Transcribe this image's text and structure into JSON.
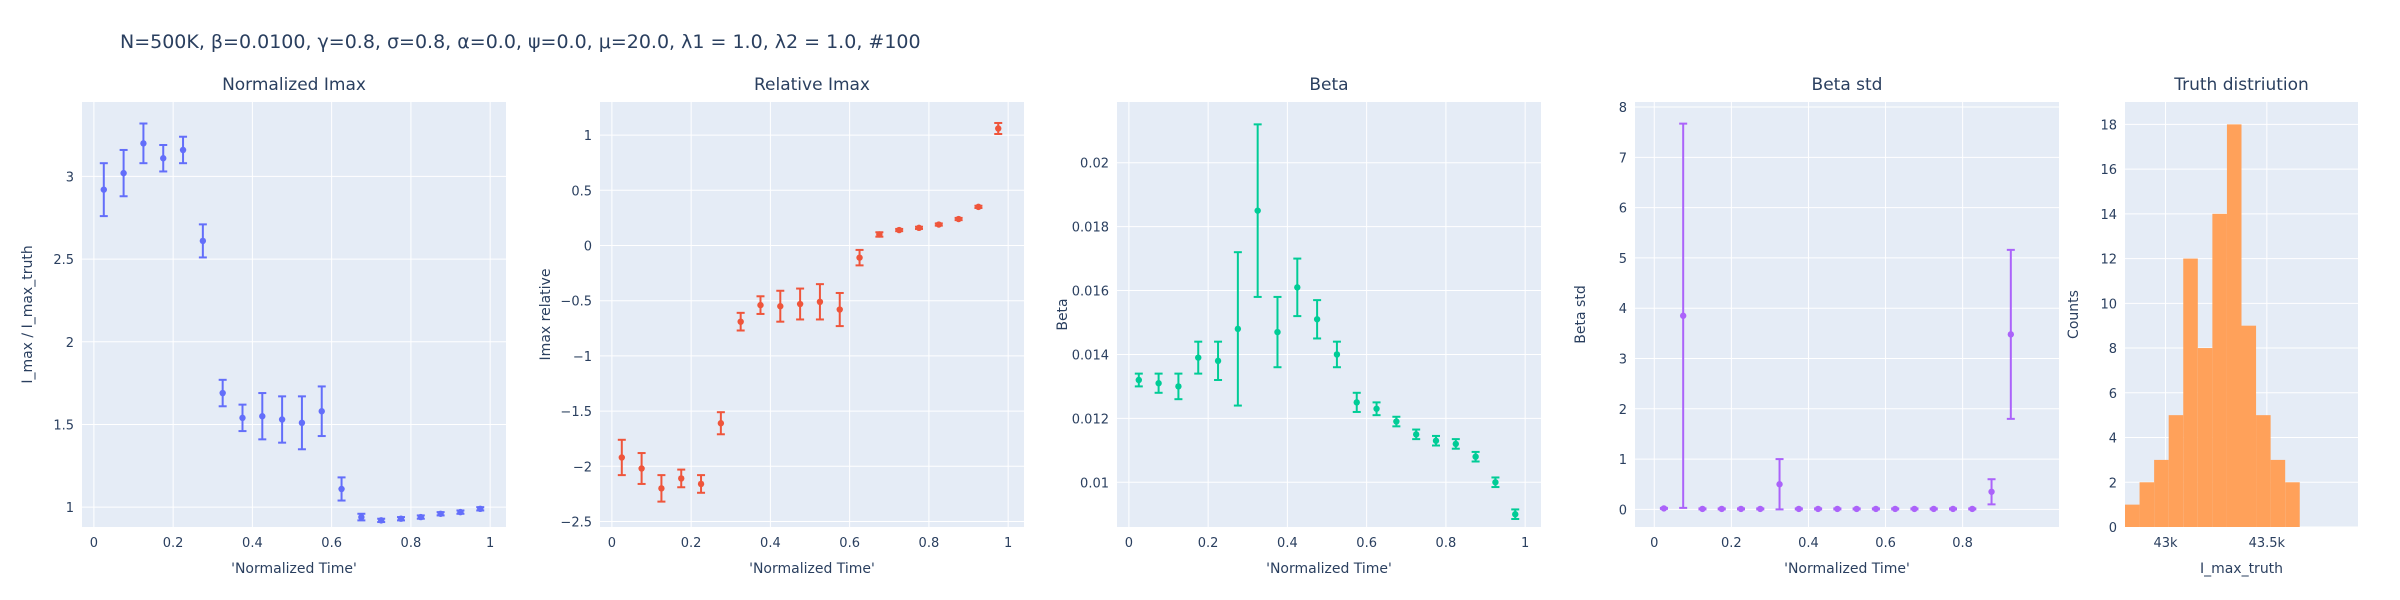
{
  "figure_title": "N=500K, β=0.0100, γ=0.8, σ=0.8,  α=0.0, ψ=0.0, μ=20.0, λ1 = 1.0, λ2 = 1.0, #100",
  "chart_data": [
    {
      "type": "scatter",
      "title": "Normalized Imax",
      "xlabel": "'Normalized Time'",
      "ylabel": "I_max / I_max_truth",
      "color": "#636efa",
      "xlim": [
        -0.03,
        1.04
      ],
      "ylim": [
        0.88,
        3.45
      ],
      "xticks": [
        0,
        0.2,
        0.4,
        0.6,
        0.8,
        1
      ],
      "xticklabels": [
        "0",
        "0.2",
        "0.4",
        "0.6",
        "0.8",
        "1"
      ],
      "yticks": [
        1,
        1.5,
        2,
        2.5,
        3
      ],
      "yticklabels": [
        "1",
        "1.5",
        "2",
        "2.5",
        "3"
      ],
      "points": [
        {
          "x": 0.025,
          "y": 2.92,
          "err": 0.16
        },
        {
          "x": 0.075,
          "y": 3.02,
          "err": 0.14
        },
        {
          "x": 0.125,
          "y": 3.2,
          "err": 0.12
        },
        {
          "x": 0.175,
          "y": 3.11,
          "err": 0.08
        },
        {
          "x": 0.225,
          "y": 3.16,
          "err": 0.08
        },
        {
          "x": 0.275,
          "y": 2.61,
          "err": 0.1
        },
        {
          "x": 0.325,
          "y": 1.69,
          "err": 0.08
        },
        {
          "x": 0.375,
          "y": 1.54,
          "err": 0.08
        },
        {
          "x": 0.425,
          "y": 1.55,
          "err": 0.14
        },
        {
          "x": 0.475,
          "y": 1.53,
          "err": 0.14
        },
        {
          "x": 0.525,
          "y": 1.51,
          "err": 0.16
        },
        {
          "x": 0.575,
          "y": 1.58,
          "err": 0.15
        },
        {
          "x": 0.625,
          "y": 1.11,
          "err": 0.07
        },
        {
          "x": 0.675,
          "y": 0.94,
          "err": 0.02
        },
        {
          "x": 0.725,
          "y": 0.92,
          "err": 0.01
        },
        {
          "x": 0.775,
          "y": 0.93,
          "err": 0.01
        },
        {
          "x": 0.825,
          "y": 0.94,
          "err": 0.01
        },
        {
          "x": 0.875,
          "y": 0.96,
          "err": 0.01
        },
        {
          "x": 0.925,
          "y": 0.97,
          "err": 0.01
        },
        {
          "x": 0.975,
          "y": 0.99,
          "err": 0.01
        }
      ]
    },
    {
      "type": "scatter",
      "title": "Relative Imax",
      "xlabel": "'Normalized Time'",
      "ylabel": "Imax relative",
      "color": "#ef553b",
      "xlim": [
        -0.03,
        1.04
      ],
      "ylim": [
        -2.55,
        1.3
      ],
      "xticks": [
        0,
        0.2,
        0.4,
        0.6,
        0.8,
        1
      ],
      "xticklabels": [
        "0",
        "0.2",
        "0.4",
        "0.6",
        "0.8",
        "1"
      ],
      "yticks": [
        -2.5,
        -2,
        -1.5,
        -1,
        -0.5,
        0,
        0.5,
        1
      ],
      "yticklabels": [
        "−2.5",
        "−2",
        "−1.5",
        "−1",
        "−0.5",
        "0",
        "0.5",
        "1"
      ],
      "points": [
        {
          "x": 0.025,
          "y": -1.92,
          "err": 0.16
        },
        {
          "x": 0.075,
          "y": -2.02,
          "err": 0.14
        },
        {
          "x": 0.125,
          "y": -2.2,
          "err": 0.12
        },
        {
          "x": 0.175,
          "y": -2.11,
          "err": 0.08
        },
        {
          "x": 0.225,
          "y": -2.16,
          "err": 0.08
        },
        {
          "x": 0.275,
          "y": -1.61,
          "err": 0.1
        },
        {
          "x": 0.325,
          "y": -0.69,
          "err": 0.08
        },
        {
          "x": 0.375,
          "y": -0.54,
          "err": 0.08
        },
        {
          "x": 0.425,
          "y": -0.55,
          "err": 0.14
        },
        {
          "x": 0.475,
          "y": -0.53,
          "err": 0.14
        },
        {
          "x": 0.525,
          "y": -0.51,
          "err": 0.16
        },
        {
          "x": 0.575,
          "y": -0.58,
          "err": 0.15
        },
        {
          "x": 0.625,
          "y": -0.11,
          "err": 0.07
        },
        {
          "x": 0.675,
          "y": 0.1,
          "err": 0.02
        },
        {
          "x": 0.725,
          "y": 0.14,
          "err": 0.01
        },
        {
          "x": 0.775,
          "y": 0.16,
          "err": 0.01
        },
        {
          "x": 0.825,
          "y": 0.19,
          "err": 0.01
        },
        {
          "x": 0.875,
          "y": 0.24,
          "err": 0.01
        },
        {
          "x": 0.925,
          "y": 0.35,
          "err": 0.01
        },
        {
          "x": 0.975,
          "y": 1.06,
          "err": 0.05
        }
      ]
    },
    {
      "type": "scatter",
      "title": "Beta",
      "xlabel": "'Normalized Time'",
      "ylabel": "Beta",
      "color": "#00cc96",
      "xlim": [
        -0.03,
        1.04
      ],
      "ylim": [
        0.0086,
        0.0219
      ],
      "xticks": [
        0,
        0.2,
        0.4,
        0.6,
        0.8,
        1
      ],
      "xticklabels": [
        "0",
        "0.2",
        "0.4",
        "0.6",
        "0.8",
        "1"
      ],
      "yticks": [
        0.01,
        0.012,
        0.014,
        0.016,
        0.018,
        0.02
      ],
      "yticklabels": [
        "0.01",
        "0.012",
        "0.014",
        "0.016",
        "0.018",
        "0.02"
      ],
      "points": [
        {
          "x": 0.025,
          "y": 0.0132,
          "err": 0.0002
        },
        {
          "x": 0.075,
          "y": 0.0131,
          "err": 0.0003
        },
        {
          "x": 0.125,
          "y": 0.013,
          "err": 0.0004
        },
        {
          "x": 0.175,
          "y": 0.0139,
          "err": 0.0005
        },
        {
          "x": 0.225,
          "y": 0.0138,
          "err": 0.0006
        },
        {
          "x": 0.275,
          "y": 0.0148,
          "err": 0.0024
        },
        {
          "x": 0.325,
          "y": 0.0185,
          "err": 0.0027
        },
        {
          "x": 0.375,
          "y": 0.0147,
          "err": 0.0011
        },
        {
          "x": 0.425,
          "y": 0.0161,
          "err": 0.0009
        },
        {
          "x": 0.475,
          "y": 0.0151,
          "err": 0.0006
        },
        {
          "x": 0.525,
          "y": 0.014,
          "err": 0.0004
        },
        {
          "x": 0.575,
          "y": 0.0125,
          "err": 0.0003
        },
        {
          "x": 0.625,
          "y": 0.0123,
          "err": 0.0002
        },
        {
          "x": 0.675,
          "y": 0.0119,
          "err": 0.00015
        },
        {
          "x": 0.725,
          "y": 0.0115,
          "err": 0.00015
        },
        {
          "x": 0.775,
          "y": 0.0113,
          "err": 0.00015
        },
        {
          "x": 0.825,
          "y": 0.0112,
          "err": 0.00015
        },
        {
          "x": 0.875,
          "y": 0.0108,
          "err": 0.00015
        },
        {
          "x": 0.925,
          "y": 0.01,
          "err": 0.00015
        },
        {
          "x": 0.975,
          "y": 0.009,
          "err": 0.00015
        }
      ]
    },
    {
      "type": "scatter",
      "title": "Beta std",
      "xlabel": "'Normalized Time'",
      "ylabel": "Beta std",
      "color": "#ab63fa",
      "xlim": [
        -0.05,
        1.05
      ],
      "ylim": [
        -0.35,
        8.1
      ],
      "xticks": [
        0,
        0.2,
        0.4,
        0.6,
        0.8
      ],
      "xticklabels": [
        "0",
        "0.2",
        "0.4",
        "0.6",
        "0.8"
      ],
      "yticks": [
        0,
        1,
        2,
        3,
        4,
        5,
        6,
        7,
        8
      ],
      "yticklabels": [
        "0",
        "1",
        "2",
        "3",
        "4",
        "5",
        "6",
        "7",
        "8"
      ],
      "points": [
        {
          "x": 0.025,
          "y": 0.02,
          "err": 0.01
        },
        {
          "x": 0.075,
          "y": 3.85,
          "err": 3.82
        },
        {
          "x": 0.125,
          "y": 0.01,
          "err": 0.01
        },
        {
          "x": 0.175,
          "y": 0.01,
          "err": 0.01
        },
        {
          "x": 0.225,
          "y": 0.01,
          "err": 0.01
        },
        {
          "x": 0.275,
          "y": 0.01,
          "err": 0.01
        },
        {
          "x": 0.325,
          "y": 0.5,
          "err": 0.5
        },
        {
          "x": 0.375,
          "y": 0.01,
          "err": 0.01
        },
        {
          "x": 0.425,
          "y": 0.01,
          "err": 0.01
        },
        {
          "x": 0.475,
          "y": 0.01,
          "err": 0.01
        },
        {
          "x": 0.525,
          "y": 0.01,
          "err": 0.01
        },
        {
          "x": 0.575,
          "y": 0.01,
          "err": 0.01
        },
        {
          "x": 0.625,
          "y": 0.01,
          "err": 0.01
        },
        {
          "x": 0.675,
          "y": 0.01,
          "err": 0.01
        },
        {
          "x": 0.725,
          "y": 0.01,
          "err": 0.01
        },
        {
          "x": 0.775,
          "y": 0.01,
          "err": 0.01
        },
        {
          "x": 0.825,
          "y": 0.01,
          "err": 0.01
        },
        {
          "x": 0.875,
          "y": 0.35,
          "err": 0.25
        },
        {
          "x": 0.925,
          "y": 3.48,
          "err": 1.68
        }
      ]
    },
    {
      "type": "bar",
      "title": "Truth distriution",
      "xlabel": "I_max_truth",
      "ylabel": "Counts",
      "color": "#ffa15a",
      "xlim": [
        42800,
        43950
      ],
      "ylim": [
        0,
        19
      ],
      "xticks": [
        43000,
        43500
      ],
      "xticklabels": [
        "43k",
        "43.5k"
      ],
      "yticks": [
        0,
        2,
        4,
        6,
        8,
        10,
        12,
        14,
        16,
        18
      ],
      "yticklabels": [
        "0",
        "2",
        "4",
        "6",
        "8",
        "10",
        "12",
        "14",
        "16",
        "18"
      ],
      "bin_start": 42800,
      "bin_width": 71.875,
      "values": [
        1,
        2,
        3,
        5,
        12,
        8,
        14,
        18,
        9,
        5,
        3,
        2
      ]
    }
  ]
}
